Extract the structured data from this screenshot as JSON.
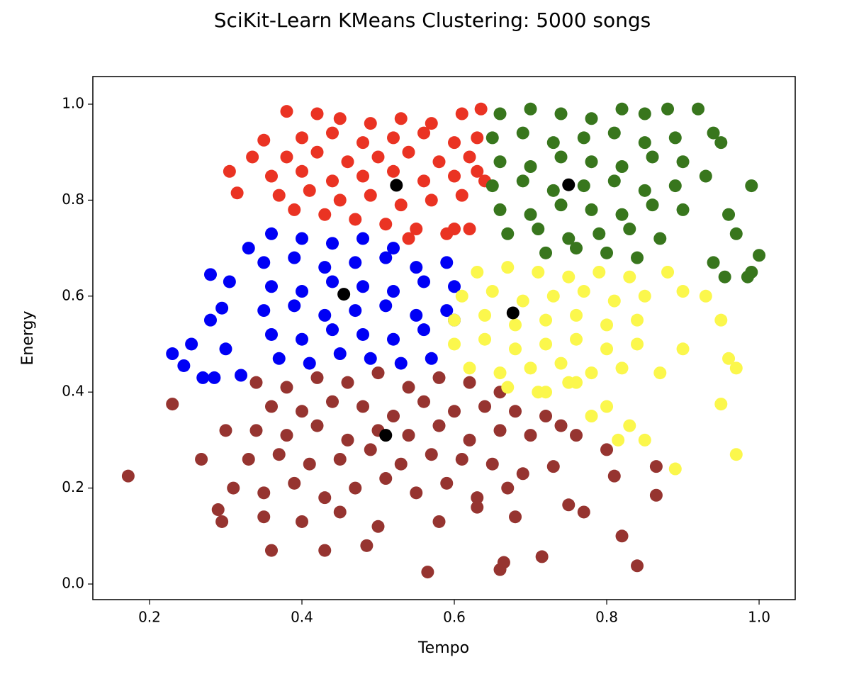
{
  "chart_data": {
    "type": "scatter",
    "title": "SciKit-Learn KMeans Clustering: 5000 songs",
    "x_label": "Tempo",
    "y_label": "Energy",
    "xlim": [
      0.1256,
      1.0474
    ],
    "ylim": [
      -0.0325,
      1.0576
    ],
    "xticks": [
      0.2,
      0.4,
      0.6,
      0.8,
      {
        "value": 1,
        "label": "1.0"
      }
    ],
    "yticks": [
      {
        "value": 0,
        "label": "0.0"
      },
      0.2,
      0.4,
      0.6,
      0.8,
      {
        "value": 1,
        "label": "1.0"
      }
    ],
    "grid": false,
    "series": [
      {
        "color": "#963430",
        "x": [
          0.34,
          0.38,
          0.42,
          0.46,
          0.5,
          0.54,
          0.58,
          0.62,
          0.66,
          0.36,
          0.4,
          0.44,
          0.48,
          0.52,
          0.56,
          0.6,
          0.64,
          0.68,
          0.72,
          0.34,
          0.38,
          0.42,
          0.46,
          0.5,
          0.54,
          0.58,
          0.62,
          0.66,
          0.7,
          0.74,
          0.33,
          0.37,
          0.41,
          0.45,
          0.49,
          0.53,
          0.57,
          0.61,
          0.65,
          0.69,
          0.31,
          0.35,
          0.39,
          0.43,
          0.47,
          0.51,
          0.55,
          0.59,
          0.63,
          0.67,
          0.35,
          0.4,
          0.45,
          0.5,
          0.58,
          0.63,
          0.68,
          0.172,
          0.23,
          0.268,
          0.29,
          0.295,
          0.3,
          0.36,
          0.43,
          0.485,
          0.565,
          0.66,
          0.665,
          0.715,
          0.84,
          0.82,
          0.865,
          0.865,
          0.8,
          0.77,
          0.75,
          0.73,
          0.76,
          0.81
        ],
        "values": [
          0.42,
          0.41,
          0.43,
          0.42,
          0.44,
          0.41,
          0.43,
          0.42,
          0.4,
          0.37,
          0.36,
          0.38,
          0.37,
          0.35,
          0.38,
          0.36,
          0.37,
          0.36,
          0.35,
          0.32,
          0.31,
          0.33,
          0.3,
          0.32,
          0.31,
          0.33,
          0.3,
          0.32,
          0.31,
          0.33,
          0.26,
          0.27,
          0.25,
          0.26,
          0.28,
          0.25,
          0.27,
          0.26,
          0.25,
          0.23,
          0.2,
          0.19,
          0.21,
          0.18,
          0.2,
          0.22,
          0.19,
          0.21,
          0.18,
          0.2,
          0.14,
          0.13,
          0.15,
          0.12,
          0.13,
          0.16,
          0.14,
          0.225,
          0.375,
          0.26,
          0.155,
          0.13,
          0.32,
          0.07,
          0.07,
          0.08,
          0.025,
          0.03,
          0.045,
          0.057,
          0.038,
          0.1,
          0.185,
          0.245,
          0.28,
          0.15,
          0.165,
          0.245,
          0.31,
          0.225
        ]
      },
      {
        "color": "#0000f5",
        "x": [
          0.36,
          0.4,
          0.44,
          0.48,
          0.52,
          0.35,
          0.39,
          0.43,
          0.47,
          0.51,
          0.55,
          0.59,
          0.36,
          0.4,
          0.44,
          0.48,
          0.52,
          0.56,
          0.6,
          0.35,
          0.39,
          0.43,
          0.47,
          0.51,
          0.55,
          0.59,
          0.36,
          0.4,
          0.44,
          0.48,
          0.52,
          0.56,
          0.37,
          0.41,
          0.45,
          0.49,
          0.53,
          0.57,
          0.23,
          0.245,
          0.255,
          0.27,
          0.285,
          0.28,
          0.28,
          0.295,
          0.3,
          0.305,
          0.32,
          0.33,
          0.6
        ],
        "values": [
          0.73,
          0.72,
          0.71,
          0.72,
          0.7,
          0.67,
          0.68,
          0.66,
          0.67,
          0.68,
          0.66,
          0.67,
          0.62,
          0.61,
          0.63,
          0.62,
          0.61,
          0.63,
          0.62,
          0.57,
          0.58,
          0.56,
          0.57,
          0.58,
          0.56,
          0.57,
          0.52,
          0.51,
          0.53,
          0.52,
          0.51,
          0.53,
          0.47,
          0.46,
          0.48,
          0.47,
          0.46,
          0.47,
          0.48,
          0.455,
          0.5,
          0.43,
          0.43,
          0.55,
          0.645,
          0.575,
          0.49,
          0.63,
          0.435,
          0.7,
          0.55
        ]
      },
      {
        "color": "#fbf74c",
        "x": [
          0.63,
          0.67,
          0.71,
          0.75,
          0.79,
          0.83,
          0.61,
          0.65,
          0.69,
          0.73,
          0.77,
          0.81,
          0.85,
          0.6,
          0.64,
          0.68,
          0.72,
          0.76,
          0.8,
          0.84,
          0.6,
          0.64,
          0.68,
          0.72,
          0.76,
          0.8,
          0.84,
          0.62,
          0.66,
          0.7,
          0.74,
          0.78,
          0.82,
          0.67,
          0.71,
          0.75,
          0.89,
          0.97,
          0.95,
          0.85,
          0.87,
          0.93,
          0.96,
          0.97,
          0.9,
          0.88,
          0.78,
          0.8,
          0.83,
          0.815,
          0.76,
          0.72,
          0.95,
          0.9
        ],
        "values": [
          0.65,
          0.66,
          0.65,
          0.64,
          0.65,
          0.64,
          0.6,
          0.61,
          0.59,
          0.6,
          0.61,
          0.59,
          0.6,
          0.55,
          0.56,
          0.54,
          0.55,
          0.56,
          0.54,
          0.55,
          0.5,
          0.51,
          0.49,
          0.5,
          0.51,
          0.49,
          0.5,
          0.45,
          0.44,
          0.45,
          0.46,
          0.44,
          0.45,
          0.41,
          0.4,
          0.42,
          0.24,
          0.27,
          0.375,
          0.3,
          0.44,
          0.6,
          0.47,
          0.45,
          0.61,
          0.65,
          0.35,
          0.37,
          0.33,
          0.3,
          0.42,
          0.4,
          0.55,
          0.49
        ]
      },
      {
        "color": "#ea3323",
        "x": [
          0.39,
          0.43,
          0.47,
          0.51,
          0.55,
          0.59,
          0.62,
          0.37,
          0.41,
          0.45,
          0.49,
          0.53,
          0.57,
          0.61,
          0.36,
          0.4,
          0.44,
          0.48,
          0.52,
          0.56,
          0.6,
          0.63,
          0.38,
          0.42,
          0.46,
          0.5,
          0.54,
          0.58,
          0.62,
          0.4,
          0.44,
          0.48,
          0.52,
          0.56,
          0.6,
          0.63,
          0.45,
          0.49,
          0.53,
          0.57,
          0.61,
          0.305,
          0.315,
          0.35,
          0.335,
          0.38,
          0.42,
          0.635,
          0.64,
          0.54,
          0.6
        ],
        "values": [
          0.78,
          0.77,
          0.76,
          0.75,
          0.74,
          0.73,
          0.74,
          0.81,
          0.82,
          0.8,
          0.81,
          0.79,
          0.8,
          0.81,
          0.85,
          0.86,
          0.84,
          0.85,
          0.86,
          0.84,
          0.85,
          0.86,
          0.89,
          0.9,
          0.88,
          0.89,
          0.9,
          0.88,
          0.89,
          0.93,
          0.94,
          0.92,
          0.93,
          0.94,
          0.92,
          0.93,
          0.97,
          0.96,
          0.97,
          0.96,
          0.98,
          0.86,
          0.815,
          0.925,
          0.89,
          0.985,
          0.98,
          0.99,
          0.84,
          0.72,
          0.74
        ]
      },
      {
        "color": "#38761d",
        "x": [
          0.66,
          0.7,
          0.74,
          0.78,
          0.82,
          0.85,
          0.65,
          0.69,
          0.73,
          0.77,
          0.81,
          0.85,
          0.89,
          0.66,
          0.7,
          0.74,
          0.78,
          0.82,
          0.86,
          0.9,
          0.65,
          0.69,
          0.73,
          0.77,
          0.81,
          0.85,
          0.89,
          0.66,
          0.7,
          0.74,
          0.78,
          0.82,
          0.86,
          0.9,
          0.67,
          0.71,
          0.75,
          0.79,
          0.83,
          0.87,
          0.72,
          0.76,
          0.8,
          0.84,
          0.94,
          0.95,
          0.99,
          1.0,
          0.99,
          0.97,
          0.955,
          0.94,
          0.93,
          0.88,
          0.92,
          0.96,
          0.985
        ],
        "values": [
          0.98,
          0.99,
          0.98,
          0.97,
          0.99,
          0.98,
          0.93,
          0.94,
          0.92,
          0.93,
          0.94,
          0.92,
          0.93,
          0.88,
          0.87,
          0.89,
          0.88,
          0.87,
          0.89,
          0.88,
          0.83,
          0.84,
          0.82,
          0.83,
          0.84,
          0.82,
          0.83,
          0.78,
          0.77,
          0.79,
          0.78,
          0.77,
          0.79,
          0.78,
          0.73,
          0.74,
          0.72,
          0.73,
          0.74,
          0.72,
          0.69,
          0.7,
          0.69,
          0.68,
          0.94,
          0.92,
          0.83,
          0.685,
          0.65,
          0.73,
          0.64,
          0.67,
          0.85,
          0.99,
          0.99,
          0.77,
          0.64
        ]
      },
      {
        "color": "#000000",
        "x": [
          0.524,
          0.75,
          0.455,
          0.677,
          0.51
        ],
        "values": [
          0.831,
          0.832,
          0.604,
          0.565,
          0.31
        ]
      }
    ]
  }
}
